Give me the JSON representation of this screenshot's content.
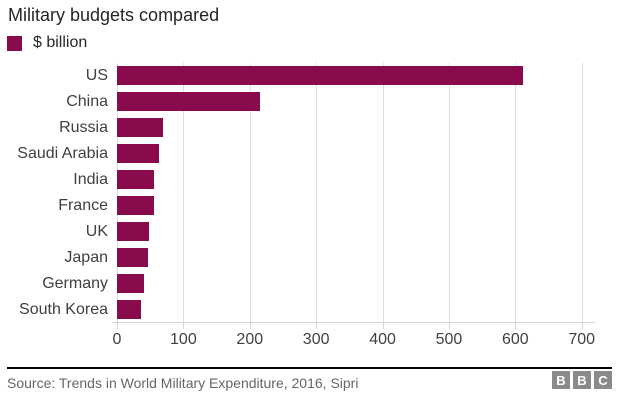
{
  "title": "Military budgets compared",
  "legend": {
    "label": "$ billion"
  },
  "chart_data": {
    "type": "bar",
    "orientation": "horizontal",
    "title": "Military budgets compared",
    "series_name": "$ billion",
    "categories": [
      "US",
      "China",
      "Russia",
      "Saudi Arabia",
      "India",
      "France",
      "UK",
      "Japan",
      "Germany",
      "South Korea"
    ],
    "values": [
      611,
      215,
      69.2,
      63.7,
      55.9,
      55.7,
      48.3,
      46.1,
      41.1,
      36.8
    ],
    "xlabel": "",
    "ylabel": "",
    "xticks": [
      0,
      100,
      200,
      300,
      400,
      500,
      600,
      700
    ],
    "xlim": [
      0,
      720
    ],
    "grid": "vertical-only",
    "legend_position": "top-left",
    "bar_color": "#8a0b4c",
    "gridline_color": "#dddddd"
  },
  "footer": {
    "source": "Source: Trends in World Military Expenditure, 2016, Sipri",
    "logo_letters": [
      "B",
      "B",
      "C"
    ]
  },
  "colors": {
    "accent": "#8a0b4c",
    "title_text": "#262626",
    "axis_text": "#404040",
    "source_text": "#666666",
    "logo_gray": "#8a8a8a",
    "divider": "#000000"
  }
}
